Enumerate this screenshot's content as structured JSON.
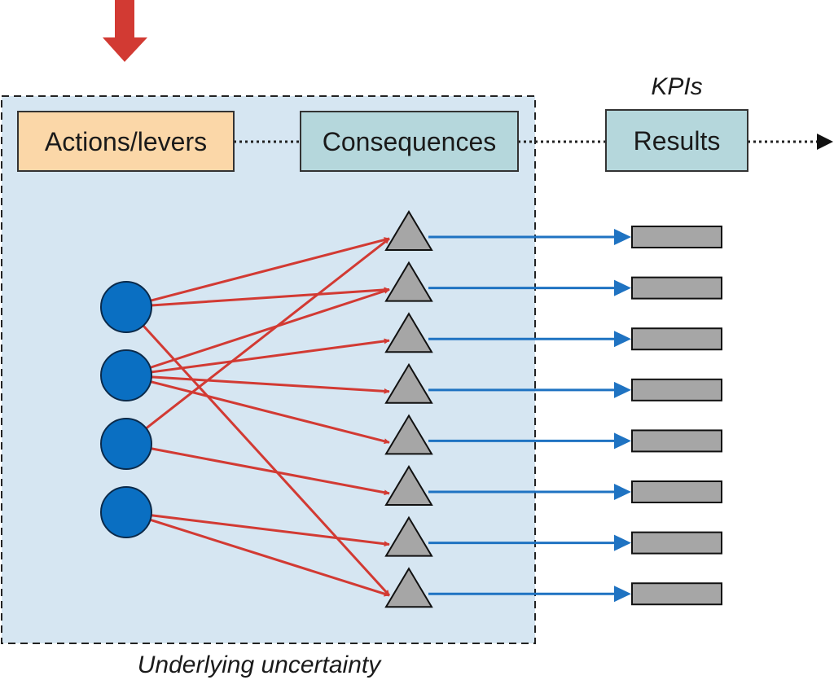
{
  "labels": {
    "actions": "Actions/levers",
    "consequences": "Consequences",
    "results": "Results",
    "kpis": "KPIs",
    "uncertainty": "Underlying uncertainty"
  },
  "colors": {
    "uncertainty_fill": "#d6e6f2",
    "actions_fill": "#fbd7a8",
    "consequences_fill": "#b5d7dc",
    "results_fill": "#b5d7dc",
    "lever_fill": "#0a6fc2",
    "consequence_fill": "#a6a6a6",
    "result_fill": "#a6a6a6",
    "influence_arrow": "#d23a33",
    "result_arrow": "#1f73c2",
    "input_arrow": "#d23a33"
  },
  "levers": [
    "lever-1",
    "lever-2",
    "lever-3",
    "lever-4"
  ],
  "consequences": [
    "consequence-1",
    "consequence-2",
    "consequence-3",
    "consequence-4",
    "consequence-5",
    "consequence-6",
    "consequence-7",
    "consequence-8"
  ],
  "influences": [
    {
      "from": 0,
      "to": 0
    },
    {
      "from": 0,
      "to": 1
    },
    {
      "from": 0,
      "to": 7
    },
    {
      "from": 1,
      "to": 1
    },
    {
      "from": 1,
      "to": 2
    },
    {
      "from": 1,
      "to": 3
    },
    {
      "from": 1,
      "to": 4
    },
    {
      "from": 2,
      "to": 0
    },
    {
      "from": 2,
      "to": 5
    },
    {
      "from": 3,
      "to": 6
    },
    {
      "from": 3,
      "to": 7
    }
  ]
}
